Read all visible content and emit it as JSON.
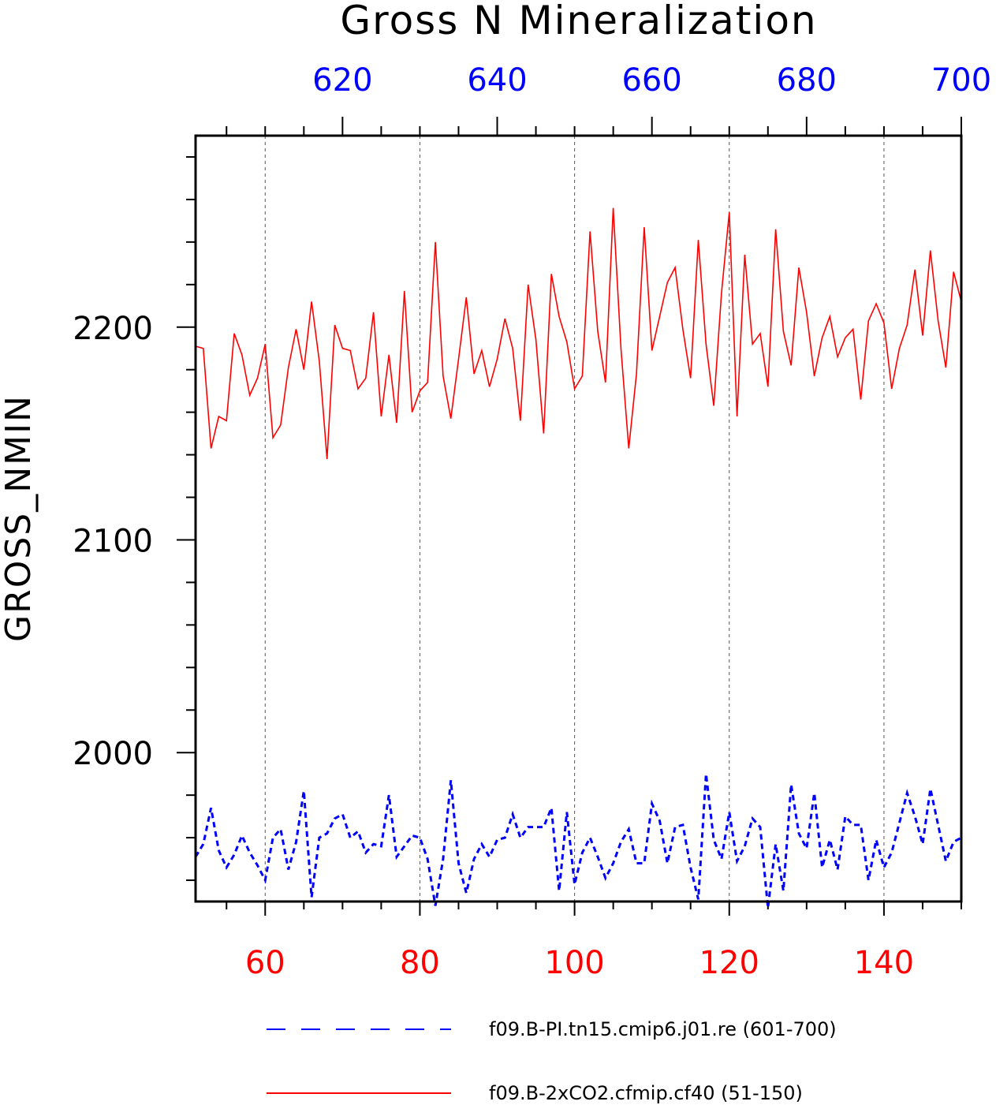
{
  "chart_data": {
    "type": "line",
    "title": "Gross N Mineralization",
    "ylabel": "GROSS_NMIN",
    "ylim": [
      1930,
      2290
    ],
    "y_ticks": [
      "2000",
      "2100",
      "2200"
    ],
    "x_bottom": {
      "range": [
        51,
        150
      ],
      "ticks": [
        "60",
        "80",
        "100",
        "120",
        "140"
      ],
      "color": "#ff0000"
    },
    "x_top": {
      "range": [
        601,
        700
      ],
      "ticks": [
        "620",
        "640",
        "660",
        "680",
        "700"
      ],
      "color": "#0000ff"
    },
    "grid": "vertical dashed",
    "legend_position": "bottom",
    "series": [
      {
        "name": "f09.B-PI.tn15.cmip6.j01.re (601-700)",
        "color": "#0000ff",
        "style": "dashed",
        "axis": "top",
        "x_start": 601,
        "values": [
          1951,
          1957,
          1974,
          1954,
          1946,
          1952,
          1961,
          1953,
          1947,
          1940,
          1960,
          1964,
          1945,
          1958,
          1982,
          1932,
          1960,
          1962,
          1969,
          1971,
          1960,
          1963,
          1953,
          1957,
          1956,
          1980,
          1951,
          1956,
          1961,
          1960,
          1950,
          1928,
          1950,
          1987,
          1948,
          1934,
          1950,
          1957,
          1951,
          1959,
          1960,
          1971,
          1960,
          1965,
          1965,
          1965,
          1974,
          1935,
          1972,
          1938,
          1953,
          1960,
          1951,
          1941,
          1948,
          1958,
          1964,
          1948,
          1948,
          1976,
          1968,
          1948,
          1965,
          1966,
          1946,
          1931,
          1990,
          1959,
          1950,
          1972,
          1949,
          1956,
          1969,
          1965,
          1927,
          1957,
          1935,
          1985,
          1962,
          1955,
          1981,
          1946,
          1959,
          1945,
          1970,
          1966,
          1966,
          1940,
          1959,
          1946,
          1953,
          1967,
          1981,
          1970,
          1957,
          1983,
          1966,
          1949,
          1958,
          1960
        ]
      },
      {
        "name": "f09.B-2xCO2.cfmip.cf40 (51-150)",
        "color": "#ff0000",
        "style": "solid",
        "axis": "bottom",
        "x_start": 51,
        "values": [
          2191,
          2190,
          2143,
          2158,
          2156,
          2197,
          2187,
          2168,
          2176,
          2192,
          2148,
          2154,
          2181,
          2199,
          2180,
          2212,
          2184,
          2138,
          2201,
          2190,
          2189,
          2171,
          2176,
          2207,
          2158,
          2187,
          2155,
          2217,
          2160,
          2170,
          2174,
          2240,
          2177,
          2157,
          2185,
          2214,
          2178,
          2189,
          2172,
          2185,
          2204,
          2190,
          2156,
          2220,
          2194,
          2150,
          2225,
          2205,
          2193,
          2171,
          2177,
          2245,
          2198,
          2174,
          2256,
          2190,
          2143,
          2178,
          2247,
          2189,
          2205,
          2221,
          2228,
          2199,
          2176,
          2241,
          2192,
          2163,
          2216,
          2254,
          2158,
          2234,
          2192,
          2197,
          2172,
          2246,
          2198,
          2182,
          2228,
          2207,
          2177,
          2195,
          2205,
          2186,
          2195,
          2199,
          2166,
          2203,
          2211,
          2202,
          2171,
          2190,
          2201,
          2227,
          2196,
          2236,
          2203,
          2181,
          2226,
          2212
        ]
      }
    ]
  },
  "legend": {
    "items": [
      {
        "label": "f09.B-PI.tn15.cmip6.j01.re (601-700)"
      },
      {
        "label": "f09.B-2xCO2.cfmip.cf40 (51-150)"
      }
    ]
  }
}
